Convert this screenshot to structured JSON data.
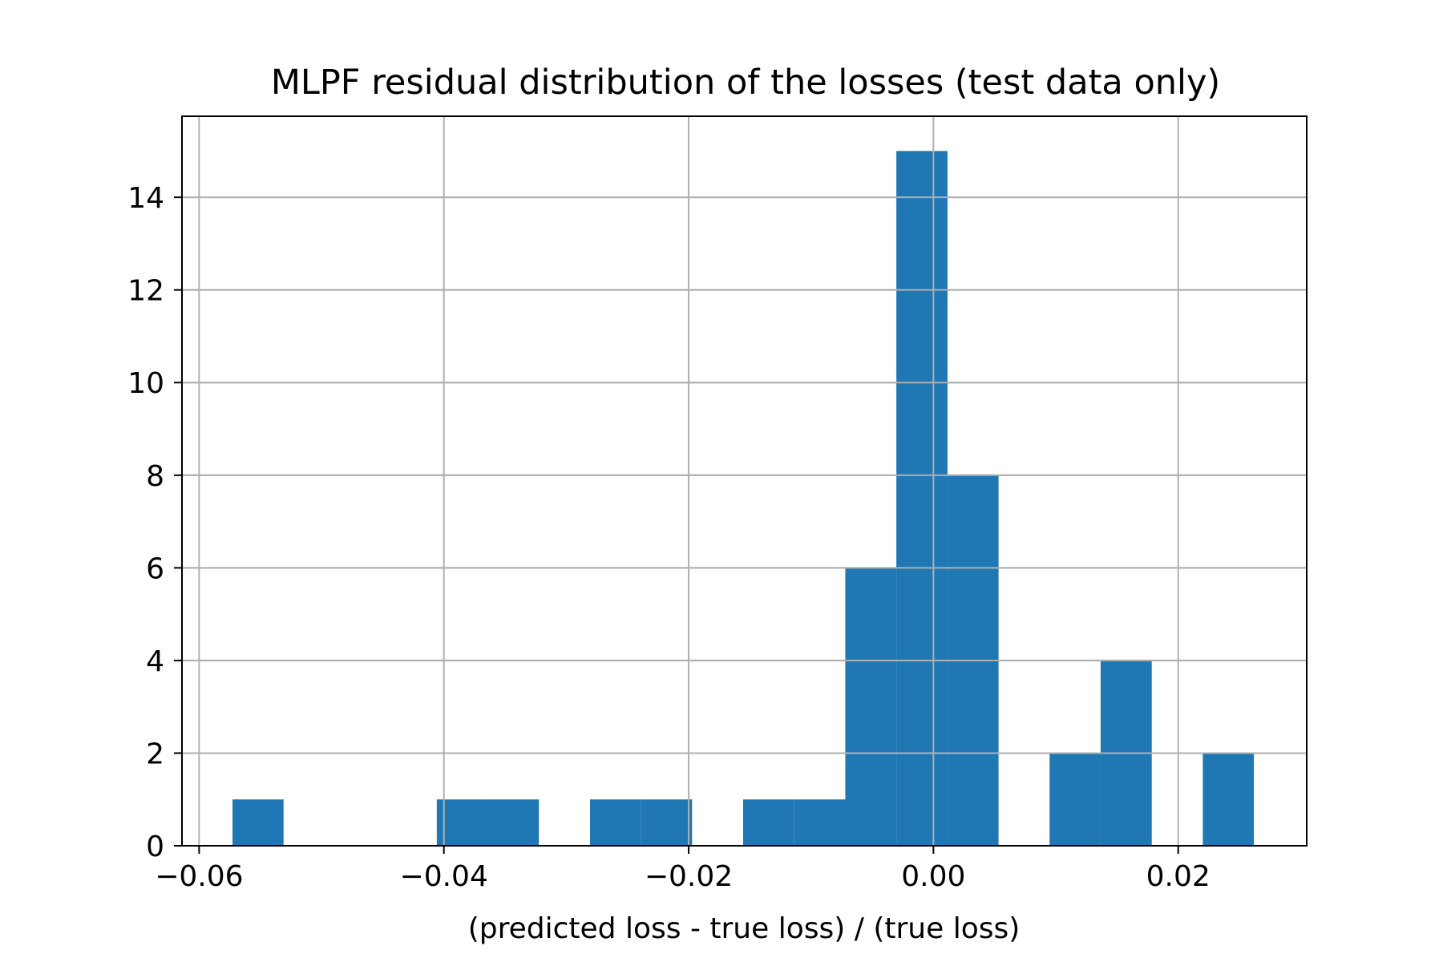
{
  "chart_data": {
    "type": "histogram",
    "title": "MLPF residual distribution of the losses (test data only)",
    "xlabel": "(predicted loss - true loss) / (true loss)",
    "ylabel": "",
    "xlim": [
      -0.0614,
      0.0305
    ],
    "ylim": [
      0,
      15.75
    ],
    "grid": true,
    "bar_color": "#1f77b4",
    "bins": [
      {
        "x0": -0.05727,
        "x1": -0.0531,
        "count": 1
      },
      {
        "x0": -0.04058,
        "x1": -0.03641,
        "count": 1
      },
      {
        "x0": -0.03641,
        "x1": -0.03224,
        "count": 1
      },
      {
        "x0": -0.02806,
        "x1": -0.02389,
        "count": 1
      },
      {
        "x0": -0.02389,
        "x1": -0.01972,
        "count": 1
      },
      {
        "x0": -0.01555,
        "x1": -0.01137,
        "count": 1
      },
      {
        "x0": -0.01137,
        "x1": -0.0072,
        "count": 1
      },
      {
        "x0": -0.0072,
        "x1": -0.00303,
        "count": 6
      },
      {
        "x0": -0.00303,
        "x1": 0.00115,
        "count": 15
      },
      {
        "x0": 0.00115,
        "x1": 0.00532,
        "count": 8
      },
      {
        "x0": 0.00949,
        "x1": 0.01366,
        "count": 2
      },
      {
        "x0": 0.01366,
        "x1": 0.01784,
        "count": 4
      },
      {
        "x0": 0.02201,
        "x1": 0.02618,
        "count": 2
      }
    ],
    "x_ticks": [
      {
        "value": -0.06,
        "label": "−0.06"
      },
      {
        "value": -0.04,
        "label": "−0.04"
      },
      {
        "value": -0.02,
        "label": "−0.02"
      },
      {
        "value": 0.0,
        "label": "0.00"
      },
      {
        "value": 0.02,
        "label": "0.02"
      }
    ],
    "y_ticks": [
      {
        "value": 0,
        "label": "0"
      },
      {
        "value": 2,
        "label": "2"
      },
      {
        "value": 4,
        "label": "4"
      },
      {
        "value": 6,
        "label": "6"
      },
      {
        "value": 8,
        "label": "8"
      },
      {
        "value": 10,
        "label": "10"
      },
      {
        "value": 12,
        "label": "12"
      },
      {
        "value": 14,
        "label": "14"
      }
    ]
  }
}
